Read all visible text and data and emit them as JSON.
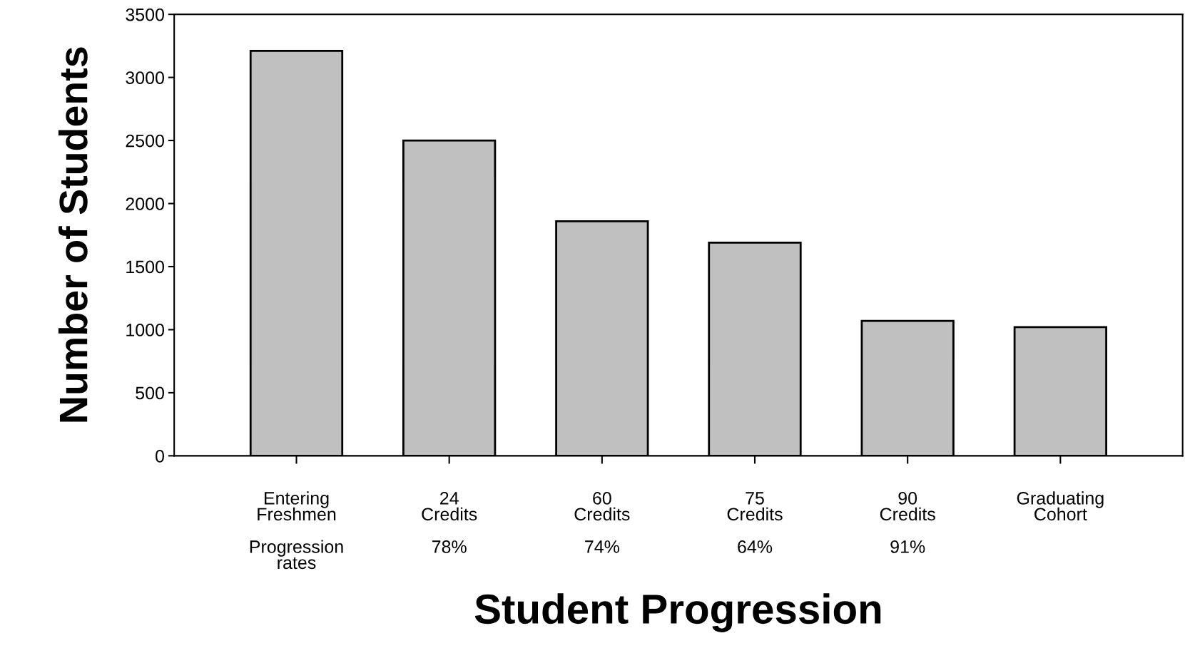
{
  "chart_data": {
    "type": "bar",
    "categories": [
      "Entering\nFreshmen",
      "24\nCredits",
      "60\nCredits",
      "75\nCredits",
      "90\nCredits",
      "Graduating\nCohort"
    ],
    "values": [
      3210,
      2500,
      1860,
      1690,
      1070,
      1020
    ],
    "color": "#c0c0c0",
    "xlabel": "Student Progression",
    "ylabel": "Number of Students",
    "ylim": [
      0,
      3500
    ],
    "yticks": [
      0,
      500,
      1000,
      1500,
      2000,
      2500,
      3000,
      3500
    ],
    "annotations": [
      "Progression\nrates",
      "78%",
      "74%",
      "64%",
      "91%"
    ],
    "grid": false,
    "legend": false
  }
}
